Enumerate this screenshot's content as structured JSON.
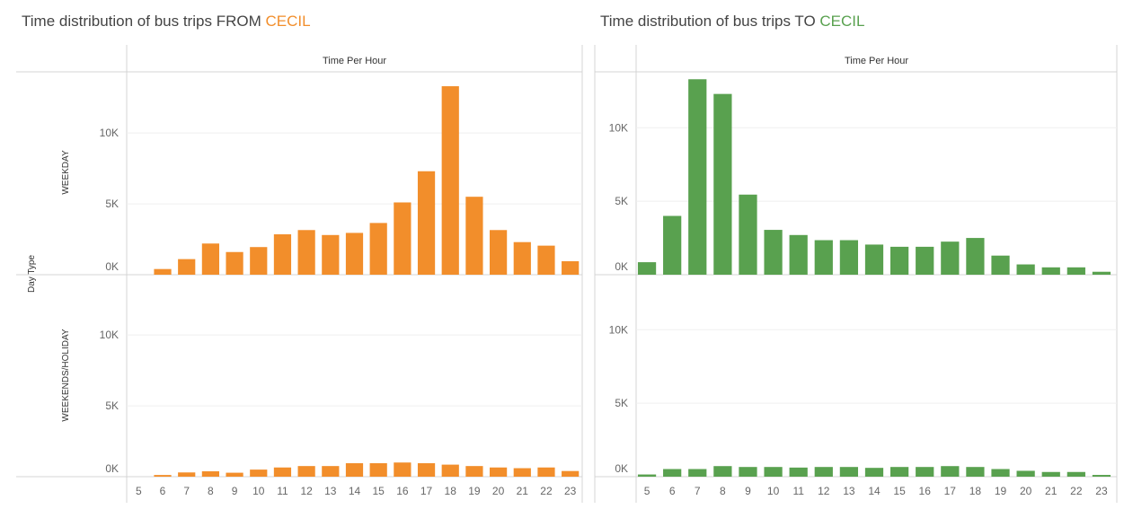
{
  "titles": {
    "left": {
      "prefix": "Time distribution of bus trips ",
      "dir": "FROM ",
      "place": "CECIL",
      "color": "#f28e2b"
    },
    "right": {
      "prefix": "Time distribution of bus trips ",
      "dir": "TO ",
      "place": "CECIL",
      "color": "#59a14f"
    }
  },
  "shared": {
    "column_header": "Time Per Hour",
    "row_axis_label": "Day Type",
    "rows": [
      "WEEKDAY",
      "WEEKENDS/HOLIDAY"
    ]
  },
  "chart_data": [
    {
      "type": "bar",
      "title": "Time distribution of bus trips FROM CECIL",
      "xlabel": "Time Per Hour",
      "ylabel": "Day Type",
      "color": "#f28e2b",
      "categories": [
        "5",
        "6",
        "7",
        "8",
        "9",
        "10",
        "11",
        "12",
        "13",
        "14",
        "15",
        "16",
        "17",
        "18",
        "19",
        "20",
        "21",
        "22",
        "23"
      ],
      "yticks": [
        0,
        5000,
        10000
      ],
      "ytick_labels": [
        "0K",
        "5K",
        "10K"
      ],
      "ylim": [
        0,
        14000
      ],
      "grid": true,
      "series": [
        {
          "name": "WEEKDAY",
          "values": [
            0,
            400,
            1100,
            2200,
            1600,
            1950,
            2850,
            3150,
            2800,
            2950,
            3650,
            5100,
            7300,
            13300,
            5500,
            3150,
            2300,
            2050,
            950
          ]
        },
        {
          "name": "WEEKENDS/HOLIDAY",
          "values": [
            0,
            120,
            300,
            380,
            280,
            500,
            650,
            750,
            750,
            950,
            950,
            1000,
            950,
            850,
            750,
            650,
            600,
            650,
            400
          ]
        }
      ]
    },
    {
      "type": "bar",
      "title": "Time distribution of bus trips TO CECIL",
      "xlabel": "Time Per Hour",
      "color": "#59a14f",
      "categories": [
        "5",
        "6",
        "7",
        "8",
        "9",
        "10",
        "11",
        "12",
        "13",
        "14",
        "15",
        "16",
        "17",
        "18",
        "19",
        "20",
        "21",
        "22",
        "23"
      ],
      "yticks": [
        0,
        5000,
        10000
      ],
      "ytick_labels": [
        "0K",
        "5K",
        "10K"
      ],
      "ylim": [
        0,
        13500
      ],
      "grid": true,
      "series": [
        {
          "name": "WEEKDAY",
          "values": [
            850,
            4000,
            13300,
            12300,
            5450,
            3050,
            2700,
            2350,
            2350,
            2050,
            1900,
            1900,
            2250,
            2500,
            1300,
            700,
            500,
            500,
            200
          ]
        },
        {
          "name": "WEEKENDS/HOLIDAY",
          "values": [
            150,
            520,
            520,
            720,
            660,
            660,
            620,
            660,
            660,
            600,
            660,
            660,
            720,
            660,
            520,
            400,
            320,
            320,
            120
          ]
        }
      ]
    }
  ]
}
